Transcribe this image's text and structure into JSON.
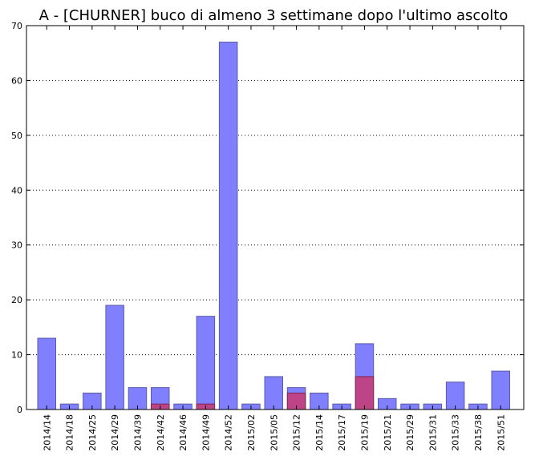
{
  "chart_data": {
    "type": "bar",
    "title": "A - [CHURNER] buco di almeno 3 settimane dopo l'ultimo ascolto",
    "xlabel": "",
    "ylabel": "",
    "ylim": [
      0,
      70
    ],
    "yticks": [
      0,
      10,
      20,
      30,
      40,
      50,
      60,
      70
    ],
    "grid": "horizontal dotted",
    "legend": "none",
    "categories": [
      "2014/14",
      "2014/18",
      "2014/25",
      "2014/29",
      "2014/39",
      "2014/42",
      "2014/46",
      "2014/49",
      "2014/52",
      "2015/02",
      "2015/05",
      "2015/12",
      "2015/14",
      "2015/17",
      "2015/19",
      "2015/21",
      "2015/29",
      "2015/31",
      "2015/33",
      "2015/38",
      "2015/51"
    ],
    "series": [
      {
        "values": [
          13,
          1,
          3,
          19,
          4,
          4,
          1,
          17,
          67,
          1,
          6,
          4,
          3,
          1,
          12,
          2,
          1,
          1,
          5,
          1,
          7
        ],
        "color": "#8080ff"
      },
      {
        "values": [
          0,
          0,
          0,
          0,
          0,
          1,
          0,
          1,
          0,
          0,
          0,
          3,
          0,
          0,
          6,
          0,
          0,
          0,
          0,
          0,
          0
        ],
        "color": "#c0407f"
      }
    ]
  }
}
